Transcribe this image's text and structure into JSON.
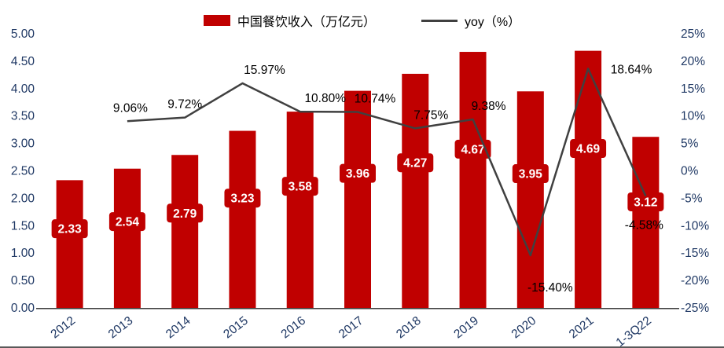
{
  "chart_data": {
    "type": "combo",
    "title": "",
    "categories": [
      "2012",
      "2013",
      "2014",
      "2015",
      "2016",
      "2017",
      "2018",
      "2019",
      "2020",
      "2021",
      "1-3Q22"
    ],
    "series": [
      {
        "name": "中国餐饮收入（万亿元）",
        "type": "bar",
        "color": "#c00000",
        "axis": "left",
        "values": [
          2.33,
          2.54,
          2.79,
          3.23,
          3.58,
          3.96,
          4.27,
          4.67,
          3.95,
          4.69,
          3.12
        ],
        "labels": [
          "2.33",
          "2.54",
          "2.79",
          "3.23",
          "3.58",
          "3.96",
          "4.27",
          "4.67",
          "3.95",
          "4.69",
          "3.12"
        ]
      },
      {
        "name": "yoy（%）",
        "type": "line",
        "color": "#404040",
        "axis": "right",
        "values": [
          null,
          9.06,
          9.72,
          15.97,
          10.8,
          10.74,
          7.75,
          9.38,
          -15.4,
          18.64,
          -4.58
        ],
        "labels": [
          "",
          "9.06%",
          "9.72%",
          "15.97%",
          "10.80%",
          "10.74%",
          "7.75%",
          "9.38%",
          "-15.40%",
          "18.64%",
          "-4.58%"
        ],
        "label_dx": [
          0,
          4,
          0,
          28,
          32,
          22,
          20,
          20,
          25,
          55,
          -2
        ],
        "label_dy": [
          0,
          -12,
          -12,
          -12,
          -12,
          -12,
          -12,
          -12,
          46,
          6,
          42
        ]
      }
    ],
    "left_axis": {
      "min": 0,
      "max": 5,
      "ticks": [
        "5.00",
        "4.50",
        "4.00",
        "3.50",
        "3.00",
        "2.50",
        "2.00",
        "1.50",
        "1.00",
        "0.50",
        "0.00"
      ]
    },
    "right_axis": {
      "min": -25,
      "max": 25,
      "ticks": [
        "25%",
        "20%",
        "15%",
        "10%",
        "5%",
        "0%",
        "-5%",
        "-10%",
        "-15%",
        "-20%",
        "-25%"
      ]
    },
    "legend_position": "top-center",
    "grid": false,
    "colors": {
      "bar": "#c00000",
      "line": "#404040",
      "axis_text": "#1f3864",
      "value_label_text": "#ffffff",
      "line_label_text": "#000000",
      "axis_line": "#404040"
    }
  }
}
